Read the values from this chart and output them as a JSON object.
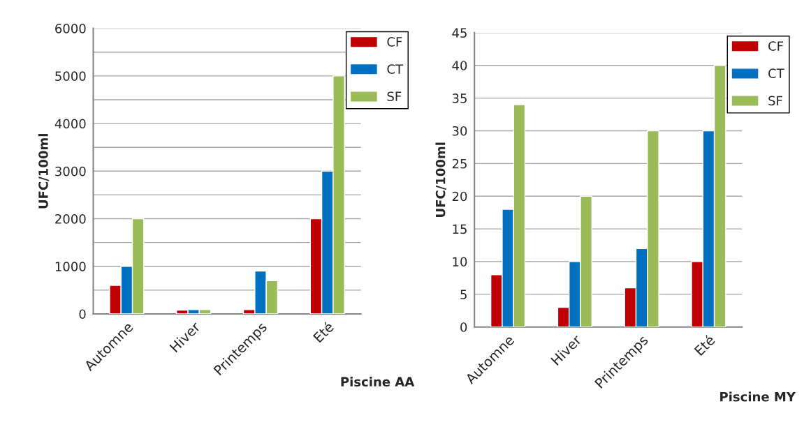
{
  "chart_data": [
    {
      "type": "bar",
      "ylabel": "UFC/100ml",
      "xlabel": "Piscine AA",
      "categories": [
        "Automne",
        "Hiver",
        "Printemps",
        "Eté"
      ],
      "series": [
        {
          "name": "CF",
          "color": "#c00000",
          "values": [
            600,
            80,
            90,
            2000
          ]
        },
        {
          "name": "CT",
          "color": "#0070c0",
          "values": [
            1000,
            90,
            900,
            3000
          ]
        },
        {
          "name": "SF",
          "color": "#9bbb59",
          "values": [
            2000,
            90,
            700,
            5000
          ]
        }
      ],
      "ylim": [
        0,
        6000
      ],
      "yticks": [
        0,
        {
          "value": 500,
          "label": null
        },
        1000,
        {
          "value": 1500,
          "label": null
        },
        2000,
        {
          "value": 2500,
          "label": null
        },
        3000,
        {
          "value": 3500,
          "label": null
        },
        4000,
        {
          "value": 4500,
          "label": null
        },
        5000,
        {
          "value": 5500,
          "label": null
        },
        6000
      ],
      "grid": "y",
      "legend": "top right"
    },
    {
      "type": "bar",
      "ylabel": "UFC/100ml",
      "xlabel": "Piscine MY",
      "categories": [
        "Automne",
        "Hiver",
        "Printemps",
        "Eté"
      ],
      "series": [
        {
          "name": "CF",
          "color": "#c00000",
          "values": [
            8,
            3,
            6,
            10
          ]
        },
        {
          "name": "CT",
          "color": "#0070c0",
          "values": [
            18,
            10,
            12,
            30
          ]
        },
        {
          "name": "SF",
          "color": "#9bbb59",
          "values": [
            34,
            20,
            30,
            40
          ]
        }
      ],
      "ylim": [
        0,
        45
      ],
      "yticks": [
        0,
        5,
        10,
        15,
        20,
        25,
        30,
        35,
        40,
        45
      ],
      "grid": "y",
      "legend": "top right"
    }
  ]
}
